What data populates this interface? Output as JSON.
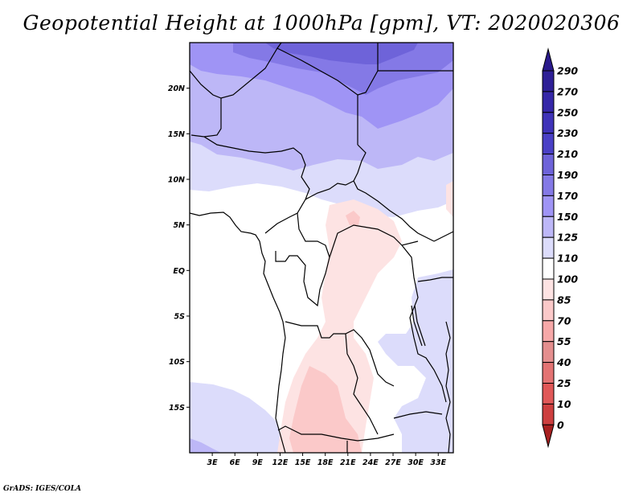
{
  "title": "Geopotential Height at 1000hPa [gpm], VT: 2020020306",
  "footer": "GrADS: IGES/COLA",
  "map": {
    "variable": "Geopotential Height",
    "level": "1000hPa",
    "units": "gpm",
    "valid_time": "2020020306",
    "lat_range": [
      -20,
      25
    ],
    "lon_range": [
      0,
      35
    ],
    "lat_ticks": [
      {
        "value": 20,
        "label": "20N"
      },
      {
        "value": 15,
        "label": "15N"
      },
      {
        "value": 10,
        "label": "10N"
      },
      {
        "value": 5,
        "label": "5N"
      },
      {
        "value": 0,
        "label": "EQ"
      },
      {
        "value": -5,
        "label": "5S"
      },
      {
        "value": -10,
        "label": "10S"
      },
      {
        "value": -15,
        "label": "15S"
      }
    ],
    "lon_ticks": [
      {
        "value": 3,
        "label": "3E"
      },
      {
        "value": 6,
        "label": "6E"
      },
      {
        "value": 9,
        "label": "9E"
      },
      {
        "value": 12,
        "label": "12E"
      },
      {
        "value": 15,
        "label": "15E"
      },
      {
        "value": 18,
        "label": "18E"
      },
      {
        "value": 21,
        "label": "21E"
      },
      {
        "value": 24,
        "label": "24E"
      },
      {
        "value": 27,
        "label": "27E"
      },
      {
        "value": 30,
        "label": "30E"
      },
      {
        "value": 33,
        "label": "33E"
      }
    ]
  },
  "colorbar": {
    "levels": [
      {
        "label": "290",
        "color": "#2e1f96"
      },
      {
        "label": "270",
        "color": "#3527a8"
      },
      {
        "label": "250",
        "color": "#3f33b8"
      },
      {
        "label": "230",
        "color": "#4a40c6"
      },
      {
        "label": "210",
        "color": "#6e63d9"
      },
      {
        "label": "190",
        "color": "#8479e6"
      },
      {
        "label": "170",
        "color": "#9f94f5"
      },
      {
        "label": "150",
        "color": "#bdb7f7"
      },
      {
        "label": "125",
        "color": "#dcdcfb"
      },
      {
        "label": "110",
        "color": "#ffffff"
      },
      {
        "label": "100",
        "color": "#fde3e3"
      },
      {
        "label": "85",
        "color": "#fbc9c9"
      },
      {
        "label": "70",
        "color": "#f6a8a8"
      },
      {
        "label": "55",
        "color": "#e48e8e"
      },
      {
        "label": "40",
        "color": "#e37373"
      },
      {
        "label": "25",
        "color": "#e05858"
      },
      {
        "label": "10",
        "color": "#cd3f3f"
      },
      {
        "label": "0",
        "color": "#b32a2a"
      }
    ],
    "top_arrow_color": "#2a1a8c",
    "bottom_arrow_color": "#a82020"
  }
}
